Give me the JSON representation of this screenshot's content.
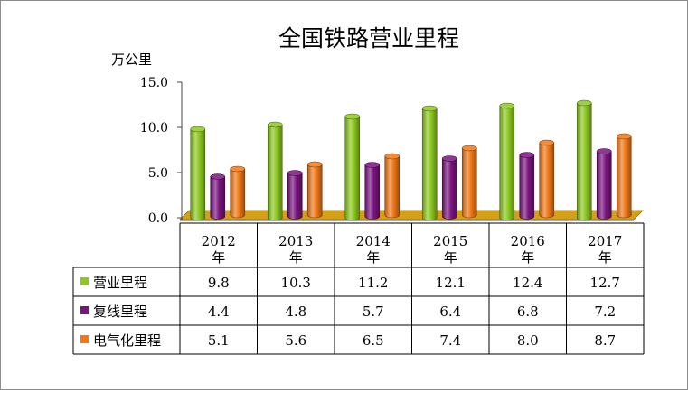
{
  "chart_data": {
    "type": "bar",
    "title": "全国铁路营业里程",
    "ylabel": "万公里",
    "xlabel": "",
    "ylim": [
      0,
      15
    ],
    "yticks": [
      "15.0",
      "10.0",
      "5.0",
      "0.0"
    ],
    "categories": [
      "2012年",
      "2013年",
      "2014年",
      "2015年",
      "2016年",
      "2017年"
    ],
    "category_years": [
      "2012",
      "2013",
      "2014",
      "2015",
      "2016",
      "2017"
    ],
    "category_unit": "年",
    "grid": false,
    "legend": "data-table",
    "style": "3d-cylinder",
    "series": [
      {
        "name": "营业里程",
        "color": "#8cc820",
        "values": [
          9.8,
          10.3,
          11.2,
          12.1,
          12.4,
          12.7
        ],
        "labels": [
          "9.8",
          "10.3",
          "11.2",
          "12.1",
          "12.4",
          "12.7"
        ]
      },
      {
        "name": "复线里程",
        "color": "#7a1480",
        "values": [
          4.4,
          4.8,
          5.7,
          6.4,
          6.8,
          7.2
        ],
        "labels": [
          "4.4",
          "4.8",
          "5.7",
          "6.4",
          "6.8",
          "7.2"
        ]
      },
      {
        "name": "电气化里程",
        "color": "#f07818",
        "values": [
          5.1,
          5.6,
          6.5,
          7.4,
          8.0,
          8.7
        ],
        "labels": [
          "5.1",
          "5.6",
          "6.5",
          "7.4",
          "8.0",
          "8.7"
        ]
      }
    ],
    "floor_color": "#d4a017"
  }
}
